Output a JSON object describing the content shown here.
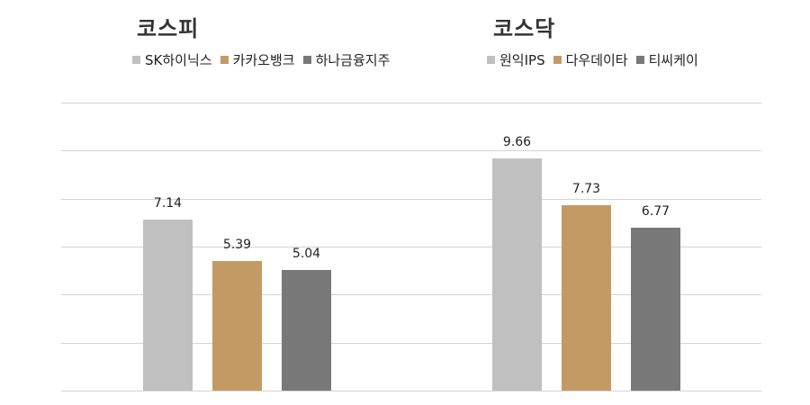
{
  "colors": {
    "series1": "#c0c0c0",
    "series2": "#c49a64",
    "series3": "#787878",
    "grid": "#d4d4d4",
    "title": "#333333"
  },
  "panels": [
    {
      "title": "코스피",
      "legend": [
        {
          "label": "SK하이닉스",
          "color": "#c0c0c0"
        },
        {
          "label": "카카오뱅크",
          "color": "#c49a64"
        },
        {
          "label": "하나금융지주",
          "color": "#787878"
        }
      ],
      "bars": [
        {
          "label": "7.14",
          "value": 7.14,
          "color": "#c0c0c0"
        },
        {
          "label": "5.39",
          "value": 5.39,
          "color": "#c49a64"
        },
        {
          "label": "5.04",
          "value": 5.04,
          "color": "#787878"
        }
      ]
    },
    {
      "title": "코스닥",
      "legend": [
        {
          "label": "원익IPS",
          "color": "#c0c0c0"
        },
        {
          "label": "다우데이타",
          "color": "#c49a64"
        },
        {
          "label": "티씨케이",
          "color": "#787878"
        }
      ],
      "bars": [
        {
          "label": "9.66",
          "value": 9.66,
          "color": "#c0c0c0"
        },
        {
          "label": "7.73",
          "value": 7.73,
          "color": "#c49a64"
        },
        {
          "label": "6.77",
          "value": 6.77,
          "color": "#787878"
        }
      ]
    }
  ],
  "chart_data": {
    "type": "bar",
    "title": "",
    "xlabel": "",
    "ylabel": "",
    "ylim": [
      0,
      12
    ],
    "grid": true,
    "gridline_values": [
      0,
      2,
      4,
      6,
      8,
      10,
      12
    ],
    "legend_position": "top",
    "groups": [
      {
        "name": "코스피",
        "categories": [
          "SK하이닉스",
          "카카오뱅크",
          "하나금융지주"
        ],
        "values": [
          7.14,
          5.39,
          5.04
        ]
      },
      {
        "name": "코스닥",
        "categories": [
          "원익IPS",
          "다우데이타",
          "티씨케이"
        ],
        "values": [
          9.66,
          7.73,
          6.77
        ]
      }
    ]
  }
}
